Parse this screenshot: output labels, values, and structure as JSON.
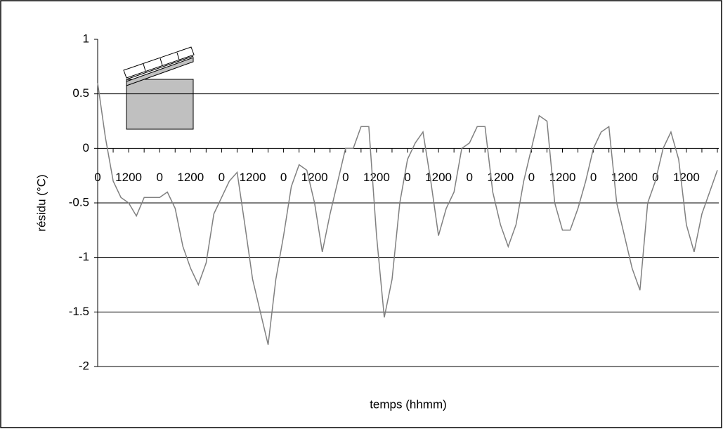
{
  "chart_data": {
    "type": "line",
    "y_label": "résidu (°C)",
    "x_label": "temps (hhmm)",
    "categories": [
      "0",
      null,
      null,
      null,
      "1200",
      null,
      null,
      null,
      "0",
      null,
      null,
      null,
      "1200",
      null,
      null,
      null,
      "0",
      null,
      null,
      null,
      "1200",
      null,
      null,
      null,
      "0",
      null,
      null,
      null,
      "1200",
      null,
      null,
      null,
      "0",
      null,
      null,
      null,
      "1200",
      null,
      null,
      null,
      "0",
      null,
      null,
      null,
      "1200",
      null,
      null,
      null,
      "0",
      null,
      null,
      null,
      "1200",
      null,
      null,
      null,
      "0",
      null,
      null,
      null,
      "1200",
      null,
      null,
      null,
      "0",
      null,
      null,
      null,
      "1200",
      null,
      null,
      null,
      "0",
      null,
      null,
      null,
      "1200",
      null,
      null,
      null,
      null
    ],
    "values": [
      0.6,
      0.1,
      -0.3,
      -0.45,
      -0.5,
      -0.62,
      -0.45,
      -0.45,
      -0.45,
      -0.4,
      -0.55,
      -0.9,
      -1.1,
      -1.25,
      -1.05,
      -0.6,
      -0.45,
      -0.3,
      -0.22,
      -0.7,
      -1.2,
      -1.5,
      -1.8,
      -1.2,
      -0.8,
      -0.35,
      -0.15,
      -0.2,
      -0.5,
      -0.95,
      -0.6,
      -0.3,
      0.0,
      0.0,
      0.2,
      0.2,
      -0.8,
      -1.55,
      -1.2,
      -0.5,
      -0.1,
      0.05,
      0.15,
      -0.3,
      -0.8,
      -0.55,
      -0.4,
      0.0,
      0.05,
      0.2,
      0.2,
      -0.4,
      -0.7,
      -0.9,
      -0.7,
      -0.3,
      0.0,
      0.3,
      0.25,
      -0.5,
      -0.75,
      -0.75,
      -0.55,
      -0.3,
      0.0,
      0.15,
      0.2,
      -0.5,
      -0.8,
      -1.1,
      -1.3,
      -0.5,
      -0.3,
      0.0,
      0.15,
      -0.1,
      -0.7,
      -0.95,
      -0.6,
      -0.4,
      -0.2
    ],
    "color": "#808080",
    "ylim": [
      -2,
      1
    ],
    "yticks": [
      1,
      0.5,
      0,
      -0.5,
      -1,
      -1.5,
      -2
    ],
    "grid": true
  }
}
